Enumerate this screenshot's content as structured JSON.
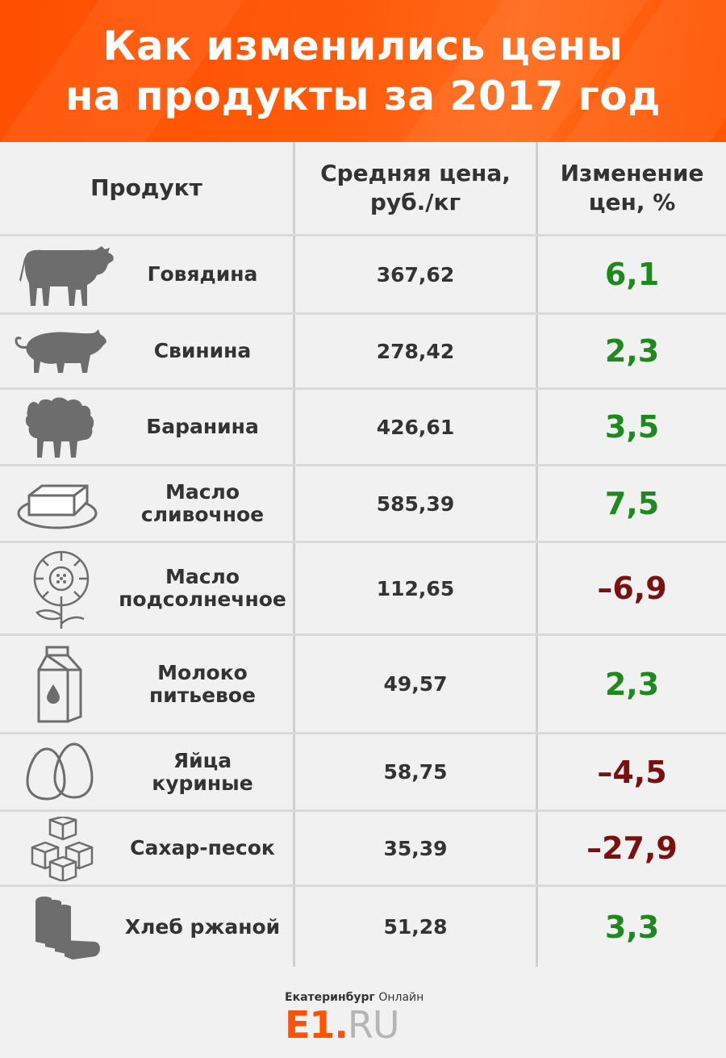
{
  "colors": {
    "header_bg": "#ff5500",
    "positive": "#1e8a1e",
    "negative": "#7a1010",
    "icon": "#6d6d6d"
  },
  "title": {
    "line1": "Как изменились цены",
    "line2": "на продукты за 2017 год"
  },
  "table": {
    "headers": {
      "product": "Продукт",
      "price_line1": "Средняя цена,",
      "price_line2": "руб./кг",
      "change_line1": "Изменение",
      "change_line2": "цен, %"
    },
    "rows": [
      {
        "icon": "cow-icon",
        "name1": "Говядина",
        "name2": "",
        "price": "367,62",
        "change": "6,1",
        "trend": "up"
      },
      {
        "icon": "pig-icon",
        "name1": "Свинина",
        "name2": "",
        "price": "278,42",
        "change": "2,3",
        "trend": "up"
      },
      {
        "icon": "sheep-icon",
        "name1": "Баранина",
        "name2": "",
        "price": "426,61",
        "change": "3,5",
        "trend": "up"
      },
      {
        "icon": "butter-icon",
        "name1": "Масло",
        "name2": "сливочное",
        "price": "585,39",
        "change": "7,5",
        "trend": "up"
      },
      {
        "icon": "sunflower-icon",
        "name1": "Масло",
        "name2": "подсолнечное",
        "price": "112,65",
        "change": "–6,9",
        "trend": "down"
      },
      {
        "icon": "milk-carton-icon",
        "name1": "Молоко",
        "name2": "питьевое",
        "price": "49,57",
        "change": "2,3",
        "trend": "up"
      },
      {
        "icon": "eggs-icon",
        "name1": "Яйца",
        "name2": "куриные",
        "price": "58,75",
        "change": "–4,5",
        "trend": "down"
      },
      {
        "icon": "sugar-cubes-icon",
        "name1": "Сахар-песок",
        "name2": "",
        "price": "35,39",
        "change": "–27,9",
        "trend": "down"
      },
      {
        "icon": "bread-icon",
        "name1": "Хлеб ржаной",
        "name2": "",
        "price": "51,28",
        "change": "3,3",
        "trend": "up"
      }
    ]
  },
  "footer": {
    "city": "Екатеринбург",
    "online": "Онлайн",
    "logo_main": "E1.",
    "logo_ru": "RU"
  }
}
